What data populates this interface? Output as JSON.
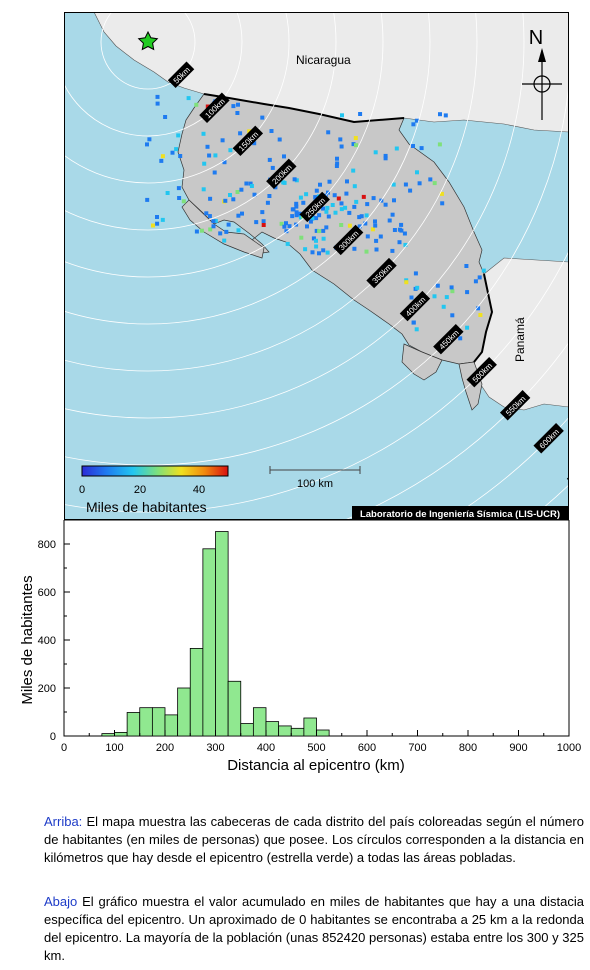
{
  "map": {
    "labels": {
      "nicaragua": "Nicaragua",
      "panama": "Panamá",
      "north": "N",
      "scale_bar": "100 km",
      "credit": "Laboratorio de Ingeniería Sísmica (LIS-UCR)"
    },
    "ring_labels": [
      "50km",
      "100km",
      "150km",
      "200km",
      "250km",
      "300km",
      "350km",
      "400km",
      "450km",
      "500km",
      "550km",
      "600km",
      "650km"
    ],
    "colorbar": {
      "title": "Miles de habitantes",
      "ticks": [
        "0",
        "20",
        "40"
      ],
      "range": [
        0,
        50
      ],
      "colors": [
        "#2b2bd6",
        "#1e7bf0",
        "#22c6f0",
        "#7fe07a",
        "#f0e020",
        "#f08a10",
        "#d81010"
      ]
    },
    "colors": {
      "sea": "#a9d9e8",
      "land_other": "#ebebeb",
      "land_cr": "#c8c8c8",
      "epicenter_star": "#22cc22",
      "ring": "#ffffff"
    }
  },
  "chart_data": {
    "type": "bar",
    "title": "",
    "xlabel": "Distancia al epicentro (km)",
    "ylabel": "Miles de habitantes",
    "xlim": [
      0,
      1000
    ],
    "ylim": [
      0,
      900
    ],
    "xticks": [
      0,
      100,
      200,
      300,
      400,
      500,
      600,
      700,
      800,
      900,
      1000
    ],
    "yticks": [
      0,
      200,
      400,
      600,
      800
    ],
    "bin_width": 25,
    "bin_starts": [
      75,
      100,
      125,
      150,
      175,
      200,
      225,
      250,
      275,
      300,
      325,
      350,
      375,
      400,
      425,
      450,
      475,
      500
    ],
    "values": [
      10,
      15,
      98,
      118,
      118,
      88,
      200,
      365,
      780,
      852,
      228,
      52,
      118,
      60,
      42,
      32,
      75,
      25
    ],
    "bar_color": "#90e890",
    "grid": false
  },
  "captions": {
    "top_lead": "Arriba:",
    "top_text": " El mapa muestra las cabeceras de cada distrito del país coloreadas según el número de habitantes (en miles de personas) que posee.  Los círculos corresponden a la distancia en kilómetros que hay desde el epicentro (estrella verde) a todas las áreas pobladas.",
    "bottom_lead": "Abajo",
    "bottom_text": " El gráfico muestra el valor acumulado en miles de habitantes que hay a una distacia específica del epicentro.  Un aproximado de 0 habitantes se encontraba a 25 km a la redonda del epicentro.  La mayoría de la población (unas 852420 personas) estaba entre los 300 y 325 km."
  }
}
